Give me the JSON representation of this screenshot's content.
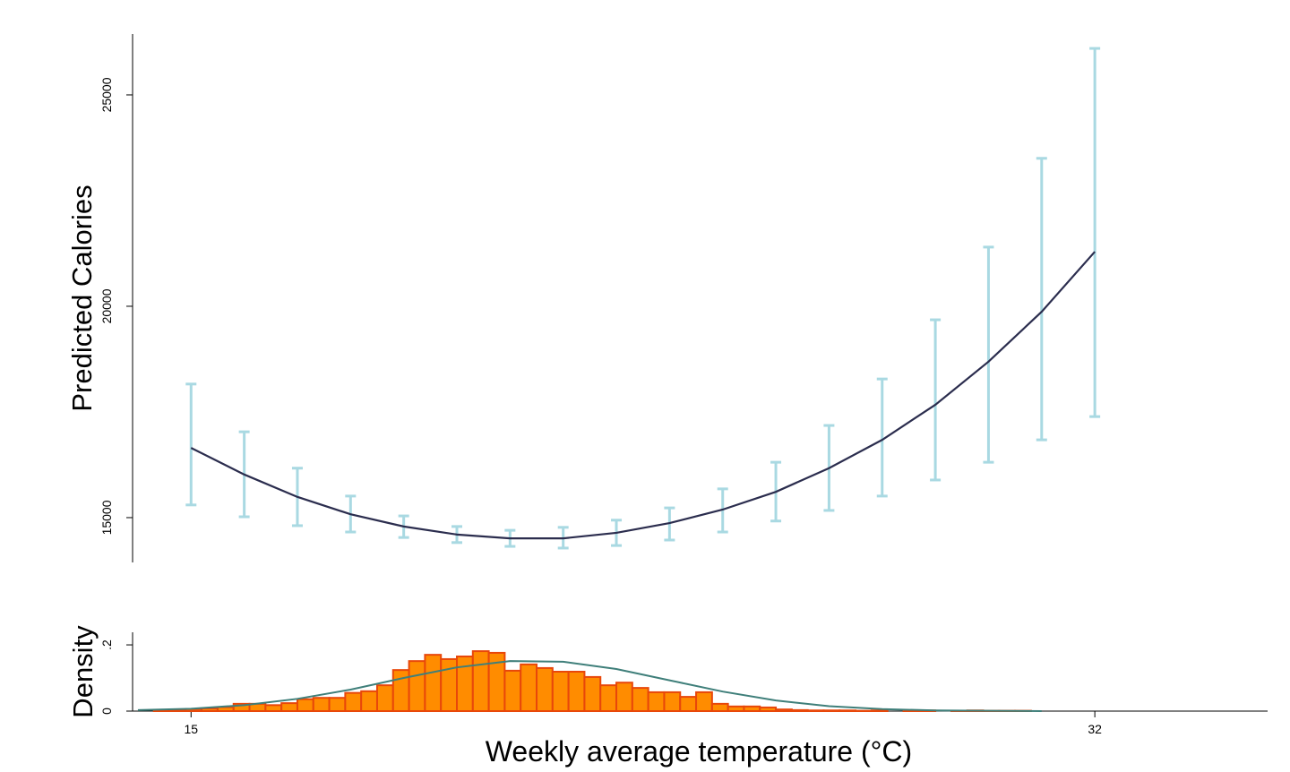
{
  "chart_data": [
    {
      "type": "line",
      "ylabel": "Predicted Calories",
      "x": [
        15,
        16,
        17,
        18,
        19,
        20,
        21,
        22,
        23,
        24,
        25,
        26,
        27,
        28,
        29,
        30,
        31,
        32
      ],
      "values": [
        16650,
        16020,
        15490,
        15080,
        14790,
        14600,
        14510,
        14510,
        14640,
        14870,
        15190,
        15610,
        16170,
        16840,
        17670,
        18690,
        19870,
        21290
      ],
      "ci_lower": [
        15300,
        15020,
        14810,
        14660,
        14530,
        14410,
        14320,
        14280,
        14340,
        14470,
        14660,
        14920,
        15170,
        15510,
        15890,
        16310,
        16840,
        17390
      ],
      "ci_upper": [
        18160,
        17030,
        16170,
        15510,
        15040,
        14790,
        14700,
        14770,
        14940,
        15230,
        15680,
        16310,
        17180,
        18280,
        19680,
        21400,
        23500,
        26100
      ],
      "color": "#2b2d4e",
      "errorbar_color": "#a9d9e2",
      "xlim": [
        13.9,
        35.25
      ],
      "ylim": [
        13940,
        26440
      ],
      "yticks": [
        15000,
        20000,
        25000
      ]
    },
    {
      "type": "histogram",
      "xlabel": "Weekly average temperature (°C)",
      "ylabel": "Density",
      "bins": [
        14.3,
        14.6,
        14.9,
        15.2,
        15.5,
        15.8,
        16.1,
        16.4,
        16.7,
        17.0,
        17.3,
        17.6,
        17.9,
        18.2,
        18.5,
        18.8,
        19.1,
        19.4,
        19.7,
        20.0,
        20.3,
        20.6,
        20.9,
        21.2,
        21.5,
        21.8,
        22.1,
        22.4,
        22.7,
        23.0,
        23.3,
        23.6,
        23.9,
        24.2,
        24.5,
        24.8,
        25.1,
        25.4,
        25.7,
        26.0,
        26.3,
        26.6,
        26.9,
        27.2,
        27.5,
        27.8,
        28.1,
        28.4,
        28.7,
        29.0,
        29.3,
        29.6,
        29.9,
        30.2,
        30.5,
        30.8
      ],
      "values": [
        0.003,
        0.005,
        0.006,
        0.008,
        0.012,
        0.022,
        0.022,
        0.018,
        0.024,
        0.036,
        0.04,
        0.04,
        0.055,
        0.06,
        0.078,
        0.124,
        0.151,
        0.17,
        0.157,
        0.165,
        0.181,
        0.176,
        0.122,
        0.141,
        0.13,
        0.119,
        0.119,
        0.103,
        0.078,
        0.086,
        0.07,
        0.057,
        0.057,
        0.043,
        0.057,
        0.022,
        0.014,
        0.014,
        0.011,
        0.005,
        0.003,
        0.002,
        0.002,
        0.002,
        0.001,
        0.002,
        0,
        0.001,
        0.002,
        0,
        0.001,
        0.002,
        0.001,
        0.001,
        0.001
      ],
      "color": "#ff8c00",
      "edge_color": "#e8470a",
      "density_curve": {
        "x": [
          14,
          15,
          16,
          17,
          18,
          19,
          20,
          21,
          22,
          23,
          24,
          25,
          26,
          27,
          28,
          29,
          30,
          31
        ],
        "values": [
          0.003,
          0.007,
          0.018,
          0.037,
          0.065,
          0.1,
          0.132,
          0.151,
          0.149,
          0.127,
          0.093,
          0.059,
          0.032,
          0.015,
          0.006,
          0.002,
          0.001,
          0
        ],
        "color": "#3f7f7a"
      },
      "xlim": [
        13.9,
        35.25
      ],
      "xticks": [
        15,
        32
      ],
      "ylim": [
        0,
        0.238
      ],
      "yticks": [
        0,
        {
          "value": 0.2,
          "label": ".2"
        }
      ]
    }
  ]
}
